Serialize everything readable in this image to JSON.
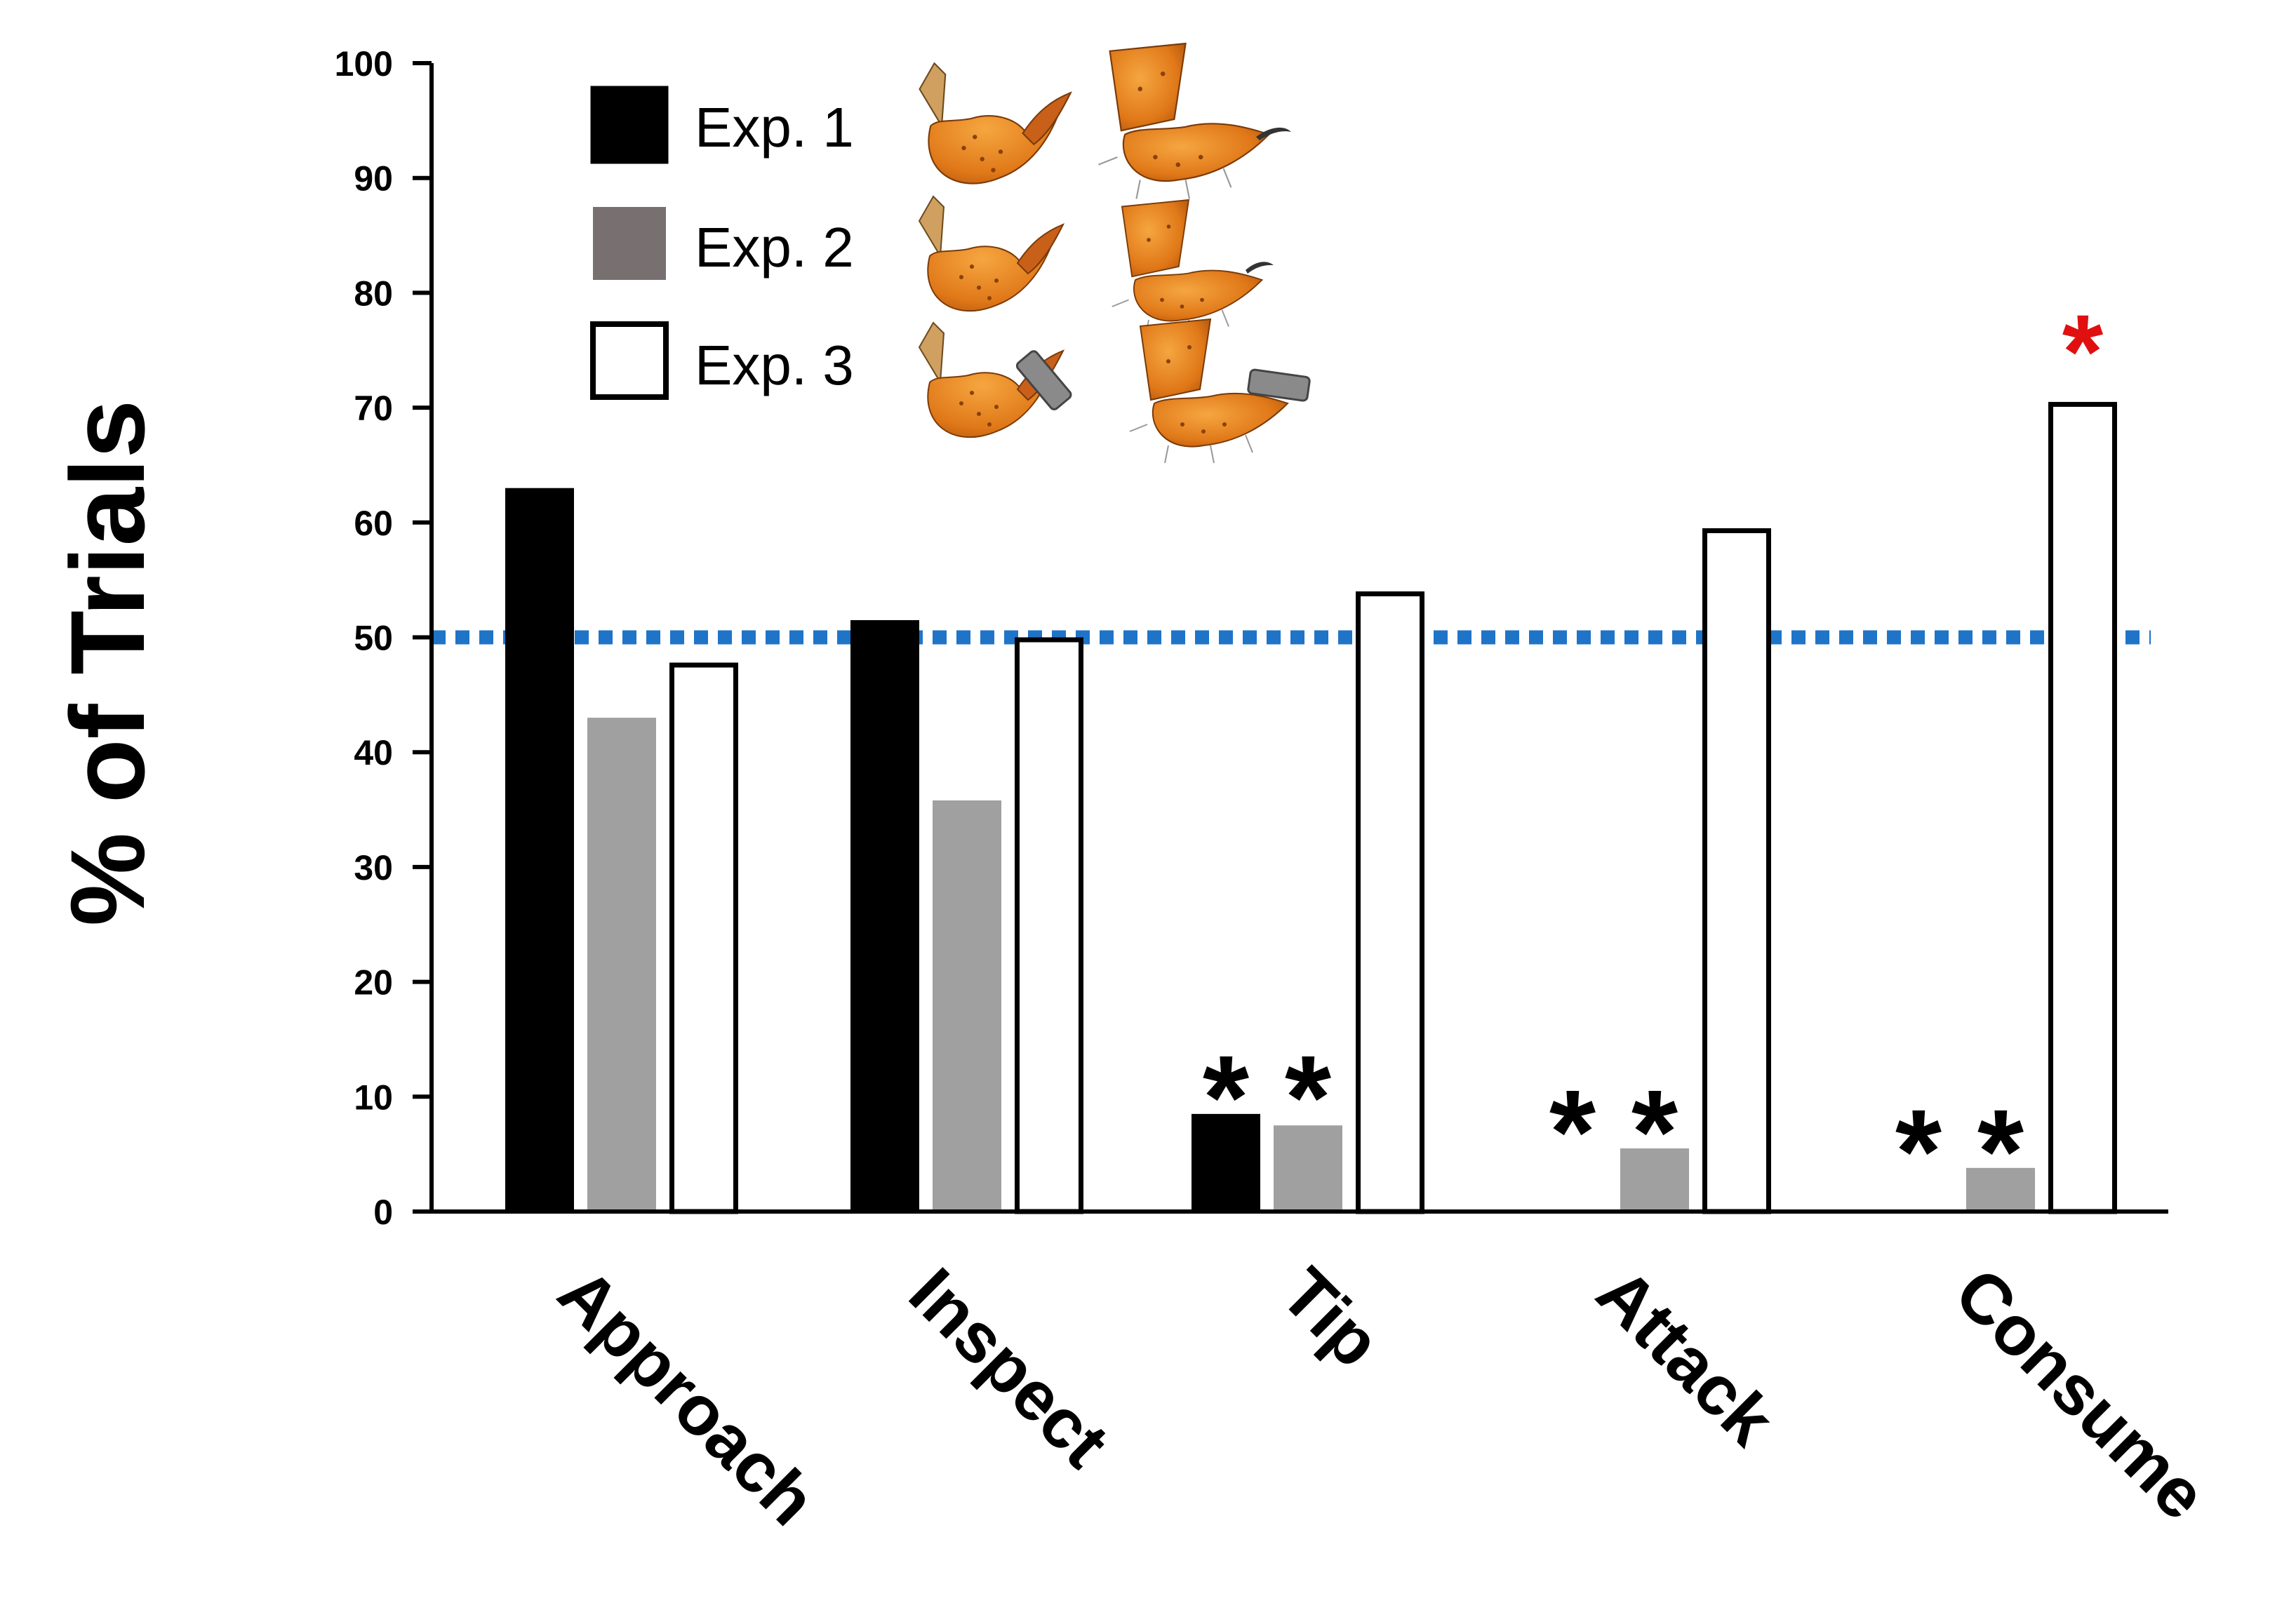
{
  "chart_data": {
    "type": "bar",
    "title": "",
    "xlabel": "",
    "ylabel": "% of Trials",
    "ylim": [
      0,
      100
    ],
    "yticks": [
      0,
      10,
      20,
      30,
      40,
      50,
      60,
      70,
      80,
      90,
      100
    ],
    "categories": [
      "Approach",
      "Inspect",
      "Tip",
      "Attack",
      "Consume"
    ],
    "series": [
      {
        "name": "Exp. 1",
        "color": "#000000",
        "outline": "#000000",
        "values": [
          63,
          51.5,
          8.5,
          0,
          0
        ]
      },
      {
        "name": "Exp. 2",
        "color": "#a0a0a0",
        "outline": "#a0a0a0",
        "values": [
          43,
          35.8,
          7.5,
          5.5,
          3.8
        ]
      },
      {
        "name": "Exp. 3",
        "color": "#ffffff",
        "outline": "#000000",
        "values": [
          47.8,
          50,
          54,
          59.5,
          70.5
        ]
      }
    ],
    "legend_swatch_colors": [
      "#000000",
      "#787070",
      "#ffffff"
    ],
    "reference_line": {
      "value": 50,
      "color": "#1f74c8",
      "style": "dotted"
    },
    "annotations": [
      {
        "text": "*",
        "category": "Tip",
        "series": "Exp. 1",
        "color": "#000000"
      },
      {
        "text": "*",
        "category": "Tip",
        "series": "Exp. 2",
        "color": "#000000"
      },
      {
        "text": "*",
        "category": "Attack",
        "series": "Exp. 1",
        "color": "#000000"
      },
      {
        "text": "*",
        "category": "Attack",
        "series": "Exp. 2",
        "color": "#000000"
      },
      {
        "text": "*",
        "category": "Consume",
        "series": "Exp. 1",
        "color": "#000000"
      },
      {
        "text": "*",
        "category": "Consume",
        "series": "Exp. 2",
        "color": "#000000"
      },
      {
        "text": "*",
        "category": "Consume",
        "series": "Exp. 3",
        "color": "#e01010"
      }
    ],
    "legend_position": "top-left",
    "legend_icons": [
      {
        "series": "Exp. 1",
        "images": [
          "stinger-claw-icon",
          "metasoma-stinger-icon"
        ]
      },
      {
        "series": "Exp. 2",
        "images": [
          "stinger-claw-icon",
          "metasoma-stinger-icon"
        ]
      },
      {
        "series": "Exp. 3",
        "images": [
          "stinger-capped-icon",
          "metasoma-capped-icon"
        ]
      }
    ]
  }
}
